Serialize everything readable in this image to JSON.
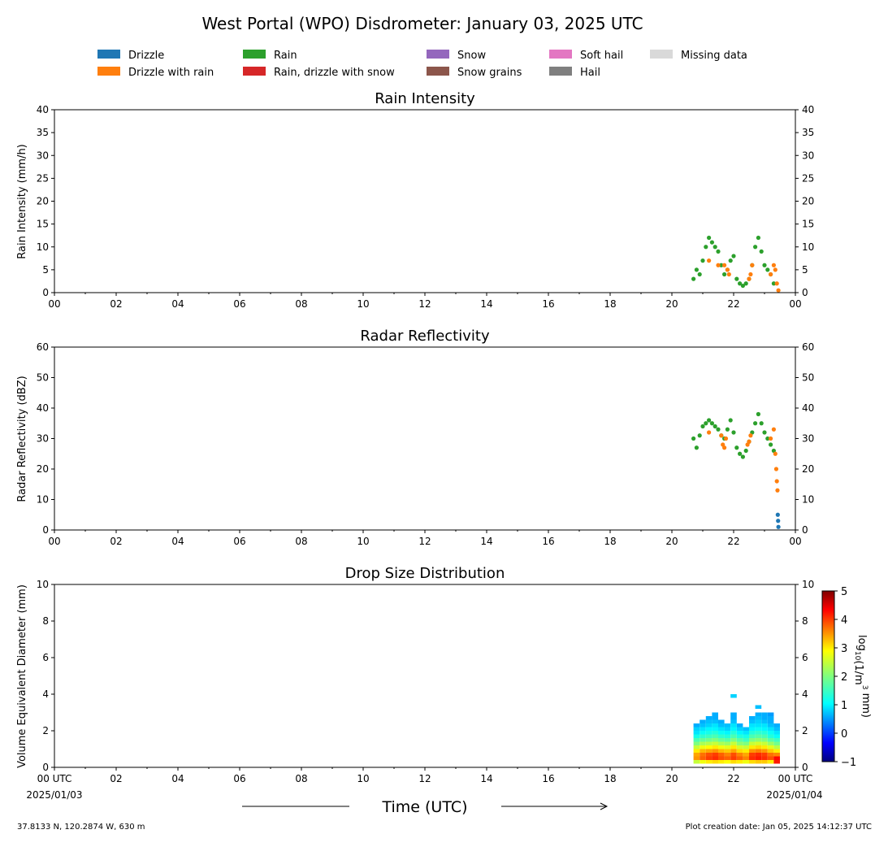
{
  "figure": {
    "title": "West Portal (WPO) Disdrometer: January 03, 2025 UTC",
    "x_axis_label": "Time (UTC)",
    "start_date": "2025/01/03",
    "end_date": "2025/01/04",
    "location": "37.8133 N, 120.2874 W, 630 m",
    "creation_note": "Plot creation date: Jan 05, 2025 14:12:37 UTC"
  },
  "legend": {
    "items": [
      {
        "label": "Drizzle",
        "color": "#1f77b4"
      },
      {
        "label": "Drizzle with rain",
        "color": "#ff7f0e"
      },
      {
        "label": "Rain",
        "color": "#2ca02c"
      },
      {
        "label": "Rain, drizzle with snow",
        "color": "#d62728"
      },
      {
        "label": "Snow",
        "color": "#9467bd"
      },
      {
        "label": "Snow grains",
        "color": "#8c564b"
      },
      {
        "label": "Soft hail",
        "color": "#e377c2"
      },
      {
        "label": "Hail",
        "color": "#7f7f7f"
      },
      {
        "label": "Missing data",
        "color": "#d9d9d9"
      }
    ]
  },
  "chart_data": [
    {
      "type": "scatter",
      "title": "Rain Intensity",
      "ylabel": "Rain Intensity (mm/h)",
      "xlabel": "Time (UTC)",
      "xlim": [
        0,
        24
      ],
      "ylim": [
        0,
        40
      ],
      "yticks": [
        0,
        5,
        10,
        15,
        20,
        25,
        30,
        35,
        40
      ],
      "xtick_labels": [
        "00",
        "02",
        "04",
        "06",
        "08",
        "10",
        "12",
        "14",
        "16",
        "18",
        "20",
        "22",
        "00"
      ],
      "grid": false,
      "series": [
        {
          "name": "Rain",
          "color": "#2ca02c",
          "x": [
            20.7,
            20.8,
            20.9,
            21.0,
            21.1,
            21.2,
            21.3,
            21.4,
            21.5,
            21.6,
            21.7,
            21.8,
            21.9,
            22.0,
            22.1,
            22.2,
            22.3,
            22.4,
            22.5,
            22.6,
            22.7,
            22.8,
            22.9,
            23.0,
            23.1,
            23.2,
            23.3
          ],
          "y": [
            3,
            5,
            4,
            7,
            10,
            12,
            11,
            10,
            9,
            6,
            4,
            5,
            7,
            8,
            3,
            2,
            1.5,
            2,
            3,
            6,
            10,
            12,
            9,
            6,
            5,
            4,
            2
          ]
        },
        {
          "name": "Drizzle with rain",
          "color": "#ff7f0e",
          "x": [
            21.2,
            21.5,
            21.7,
            21.8,
            21.85,
            22.5,
            22.55,
            22.6,
            23.2,
            23.3,
            23.35,
            23.4,
            23.45
          ],
          "y": [
            7,
            6,
            6,
            5,
            4,
            3,
            4,
            6,
            4,
            6,
            5,
            2,
            0.5
          ]
        }
      ]
    },
    {
      "type": "scatter",
      "title": "Radar Reflectivity",
      "ylabel": "Radar Reflectivity (dBZ)",
      "xlabel": "Time (UTC)",
      "xlim": [
        0,
        24
      ],
      "ylim": [
        0,
        60
      ],
      "yticks": [
        0,
        10,
        20,
        30,
        40,
        50,
        60
      ],
      "xtick_labels": [
        "00",
        "02",
        "04",
        "06",
        "08",
        "10",
        "12",
        "14",
        "16",
        "18",
        "20",
        "22",
        "00"
      ],
      "grid": false,
      "series": [
        {
          "name": "Rain",
          "color": "#2ca02c",
          "x": [
            20.7,
            20.8,
            20.9,
            21.0,
            21.1,
            21.2,
            21.3,
            21.4,
            21.5,
            21.6,
            21.7,
            21.8,
            21.9,
            22.0,
            22.1,
            22.2,
            22.3,
            22.4,
            22.5,
            22.6,
            22.7,
            22.8,
            22.9,
            23.0,
            23.1,
            23.2,
            23.3
          ],
          "y": [
            30,
            27,
            31,
            34,
            35,
            36,
            35,
            34,
            33,
            31,
            30,
            33,
            36,
            32,
            27,
            25,
            24,
            26,
            29,
            32,
            35,
            38,
            35,
            32,
            30,
            28,
            26
          ]
        },
        {
          "name": "Drizzle with rain",
          "color": "#ff7f0e",
          "x": [
            21.2,
            21.6,
            21.65,
            21.7,
            21.75,
            22.45,
            22.5,
            22.55,
            23.2,
            23.3,
            23.35,
            23.38,
            23.4,
            23.42
          ],
          "y": [
            32,
            31,
            28,
            27,
            30,
            28,
            29,
            31,
            30,
            33,
            25,
            20,
            16,
            13
          ]
        },
        {
          "name": "Drizzle",
          "color": "#1f77b4",
          "x": [
            23.43,
            23.44,
            23.45
          ],
          "y": [
            5,
            3,
            1
          ]
        }
      ]
    },
    {
      "type": "heatmap",
      "title": "Drop Size Distribution",
      "ylabel": "Volume Equivalent Diameter (mm)",
      "xlabel": "Time (UTC)",
      "xlim": [
        0,
        24
      ],
      "ylim": [
        0,
        10
      ],
      "yticks": [
        0,
        2,
        4,
        6,
        8,
        10
      ],
      "xtick_labels": [
        "00 UTC",
        "02",
        "04",
        "06",
        "08",
        "10",
        "12",
        "14",
        "16",
        "18",
        "20",
        "22",
        "00 UTC"
      ],
      "colorbar": {
        "label": "log10(1/m3 mm)",
        "ticks": [
          -1,
          0,
          1,
          2,
          3,
          4,
          5
        ],
        "range": [
          -1,
          5
        ]
      },
      "time_columns": [
        20.7,
        20.9,
        21.1,
        21.3,
        21.5,
        21.7,
        21.9,
        22.1,
        22.3,
        22.5,
        22.7,
        22.9,
        23.1,
        23.3
      ],
      "diameter_bins": [
        0.3,
        0.5,
        0.7,
        0.9,
        1.1,
        1.3,
        1.5,
        1.7,
        1.9,
        2.1,
        2.3,
        2.5,
        2.7,
        2.9,
        3.3,
        3.9
      ],
      "values": [
        [
          2.5,
          3.5,
          3.4,
          3.0,
          2.5,
          2.0,
          1.6,
          1.2,
          0.9,
          0.8,
          0.6,
          null,
          null,
          null,
          null,
          null
        ],
        [
          2.8,
          3.8,
          3.7,
          3.3,
          2.8,
          2.3,
          1.8,
          1.4,
          1.1,
          0.9,
          0.7,
          0.6,
          null,
          null,
          null,
          null
        ],
        [
          3.0,
          4.0,
          3.9,
          3.4,
          2.9,
          2.4,
          1.9,
          1.5,
          1.2,
          1.0,
          0.8,
          0.7,
          0.6,
          null,
          null,
          null
        ],
        [
          3.1,
          4.1,
          4.0,
          3.5,
          3.0,
          2.5,
          2.0,
          1.6,
          1.3,
          1.0,
          0.9,
          0.7,
          0.6,
          0.6,
          null,
          null
        ],
        [
          3.0,
          3.9,
          3.8,
          3.3,
          2.8,
          2.3,
          1.8,
          1.4,
          1.1,
          0.9,
          0.7,
          0.6,
          null,
          null,
          null,
          null
        ],
        [
          2.9,
          3.8,
          3.6,
          3.2,
          2.7,
          2.2,
          1.7,
          1.3,
          1.0,
          0.8,
          0.7,
          null,
          null,
          null,
          null,
          null
        ],
        [
          3.1,
          4.0,
          3.9,
          3.4,
          3.0,
          2.5,
          2.0,
          1.6,
          1.3,
          1.0,
          0.9,
          0.7,
          0.6,
          0.6,
          null,
          0.8
        ],
        [
          3.0,
          3.8,
          3.6,
          3.1,
          2.6,
          2.1,
          1.7,
          1.3,
          1.0,
          0.8,
          0.6,
          null,
          null,
          null,
          null,
          null
        ],
        [
          2.8,
          3.6,
          3.4,
          3.0,
          2.5,
          2.0,
          1.5,
          1.2,
          0.9,
          0.7,
          null,
          null,
          null,
          null,
          null,
          null
        ],
        [
          3.1,
          4.1,
          4.0,
          3.5,
          3.0,
          2.5,
          2.0,
          1.6,
          1.3,
          1.0,
          0.9,
          0.7,
          0.6,
          null,
          null,
          null
        ],
        [
          3.2,
          4.2,
          4.1,
          3.6,
          3.1,
          2.6,
          2.1,
          1.7,
          1.4,
          1.1,
          0.9,
          0.8,
          0.7,
          0.6,
          0.7,
          null
        ],
        [
          3.2,
          4.1,
          4.0,
          3.5,
          3.0,
          2.5,
          2.0,
          1.6,
          1.3,
          1.0,
          0.9,
          0.7,
          0.6,
          0.6,
          null,
          null
        ],
        [
          3.0,
          3.9,
          3.7,
          3.2,
          2.7,
          2.2,
          1.7,
          1.3,
          1.1,
          0.9,
          0.7,
          0.6,
          0.6,
          0.5,
          null,
          null
        ],
        [
          4.2,
          4.3,
          3.6,
          3.0,
          2.4,
          1.9,
          1.5,
          1.1,
          0.9,
          0.7,
          0.6,
          null,
          null,
          null,
          null,
          null
        ]
      ]
    }
  ]
}
